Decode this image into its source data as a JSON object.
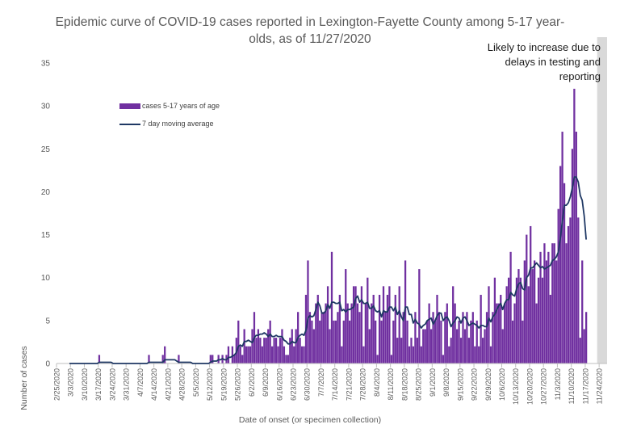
{
  "chart_data": {
    "type": "bar",
    "title_line1": "Epidemic curve of COVID-19 cases reported in Lexington-Fayette County among 5-17 year-",
    "title_line2": "olds, as of 11/27/2020",
    "xlabel": "Date of onset (or specimen collection)",
    "ylabel": "Number of cases",
    "ylim": [
      0,
      35
    ],
    "yticks": [
      0,
      5,
      10,
      15,
      20,
      25,
      30,
      35
    ],
    "x_start": "2/25/2020",
    "x_end": "11/27/2020",
    "x_ticks": [
      "2/25/2020",
      "3/3/2020",
      "3/10/2020",
      "3/17/2020",
      "3/24/2020",
      "3/31/2020",
      "4/7/2020",
      "4/14/2020",
      "4/21/2020",
      "4/28/2020",
      "5/5/2020",
      "5/12/2020",
      "5/19/2020",
      "5/26/2020",
      "6/2/2020",
      "6/9/2020",
      "6/16/2020",
      "6/23/2020",
      "6/30/2020",
      "7/7/2020",
      "7/14/2020",
      "7/21/2020",
      "7/28/2020",
      "8/4/2020",
      "8/11/2020",
      "8/18/2020",
      "8/25/2020",
      "9/1/2020",
      "9/8/2020",
      "9/15/2020",
      "9/22/2020",
      "9/29/2020",
      "10/6/2020",
      "10/13/2020",
      "10/20/2020",
      "10/27/2020",
      "11/3/2020",
      "11/10/2020",
      "11/17/2020",
      "11/24/2020"
    ],
    "grid": false,
    "legend_position": "top-left",
    "series": [
      {
        "name": "cases 5-17 years of age",
        "kind": "bar",
        "color": "#7030a0",
        "values": [
          0,
          0,
          0,
          0,
          0,
          0,
          0,
          0,
          0,
          0,
          0,
          0,
          0,
          0,
          0,
          0,
          0,
          0,
          0,
          0,
          0,
          1,
          0,
          0,
          0,
          0,
          0,
          0,
          0,
          0,
          0,
          0,
          0,
          0,
          0,
          0,
          0,
          0,
          0,
          0,
          0,
          0,
          0,
          0,
          0,
          0,
          1,
          0,
          0,
          0,
          0,
          0,
          0,
          1,
          2,
          0,
          0,
          0,
          0,
          0,
          0,
          1,
          0,
          0,
          0,
          0,
          0,
          0,
          0,
          0,
          0,
          0,
          0,
          0,
          0,
          0,
          0,
          1,
          1,
          0,
          0,
          1,
          0,
          1,
          0,
          1,
          2,
          0,
          2,
          1,
          3,
          5,
          2,
          1,
          4,
          2,
          2,
          2,
          4,
          6,
          3,
          4,
          3,
          2,
          3,
          3,
          4,
          5,
          2,
          3,
          3,
          2,
          3,
          4,
          2,
          1,
          1,
          3,
          4,
          2,
          4,
          6,
          3,
          2,
          2,
          8,
          12,
          6,
          5,
          4,
          7,
          8,
          5,
          6,
          6,
          7,
          9,
          4,
          13,
          5,
          5,
          6,
          8,
          2,
          5,
          11,
          7,
          5,
          7,
          9,
          9,
          7,
          6,
          9,
          2,
          7,
          10,
          4,
          7,
          8,
          5,
          1,
          8,
          5,
          9,
          6,
          8,
          9,
          1,
          5,
          8,
          3,
          9,
          3,
          6,
          12,
          5,
          2,
          3,
          2,
          6,
          3,
          11,
          2,
          4,
          4,
          5,
          7,
          4,
          6,
          5,
          8,
          6,
          5,
          1,
          6,
          7,
          2,
          3,
          9,
          7,
          4,
          5,
          3,
          6,
          4,
          6,
          3,
          5,
          6,
          2,
          5,
          2,
          8,
          3,
          4,
          6,
          9,
          2,
          6,
          10,
          7,
          7,
          8,
          4,
          7,
          9,
          10,
          13,
          5,
          7,
          10,
          11,
          10,
          5,
          12,
          15,
          9,
          16,
          11,
          12,
          7,
          10,
          13,
          10,
          14,
          12,
          13,
          8,
          14,
          14,
          12,
          18,
          23,
          27,
          21,
          14,
          16,
          17,
          25,
          32,
          27,
          17,
          3,
          12,
          4,
          6
        ]
      },
      {
        "name": "7 day moving average",
        "kind": "line",
        "color": "#1f3864"
      }
    ],
    "annotation": "Likely to increase due to delays in testing and reporting",
    "shaded_region": {
      "start": "11/23/2020",
      "end": "11/27/2020",
      "color": "#d9d9d9"
    }
  }
}
